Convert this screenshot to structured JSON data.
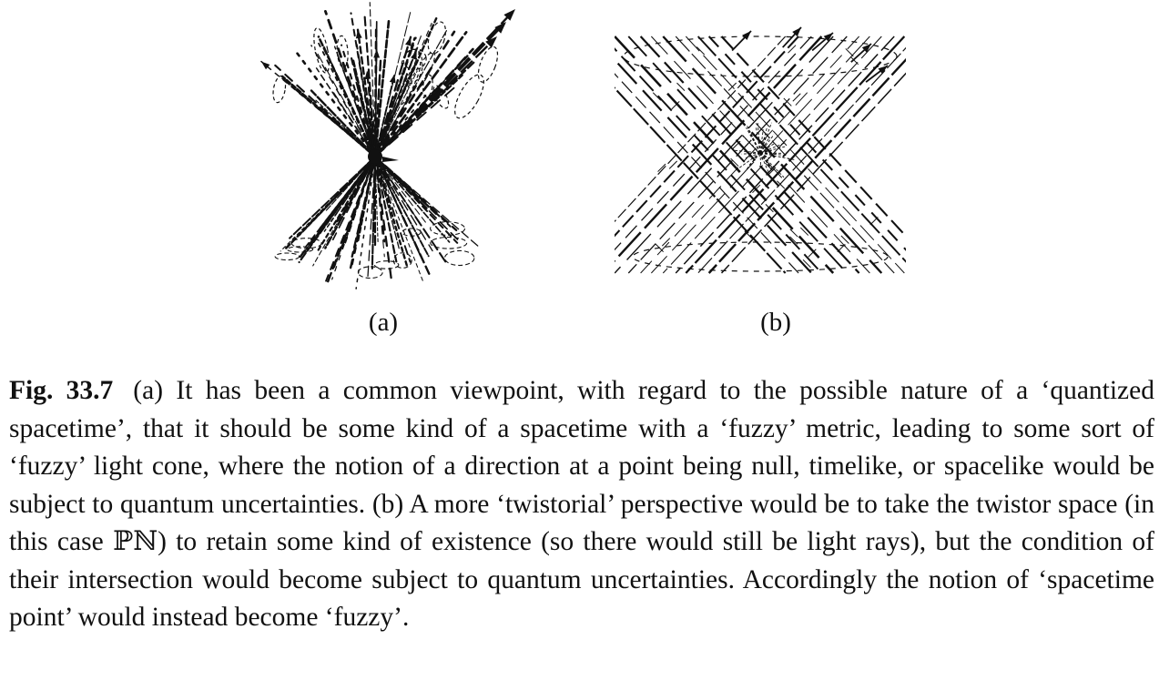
{
  "figure": {
    "panel_a_label": "(a)",
    "panel_b_label": "(b)",
    "caption_label": "Fig. 33.7",
    "caption_text": "(a) It has been a common viewpoint, with regard to the possible nature of a ‘quantized spacetime’, that it should be some kind of a spacetime with a ‘fuzzy’ metric, leading to some sort of ‘fuzzy’ light cone, where the notion of a direction at a point being null, timelike, or spacelike would be subject to quantum uncertainties. (b) A more ‘twistorial’ perspective would be to take the twistor space (in this case ℙℕ) to retain some kind of existence (so there would still be light rays), but the condition of their intersection would become subject to quantum uncertainties. Accordingly the notion of ‘spacetime point’ would instead become ‘fuzzy’."
  },
  "colors": {
    "ink": "#111111",
    "background": "#ffffff"
  }
}
